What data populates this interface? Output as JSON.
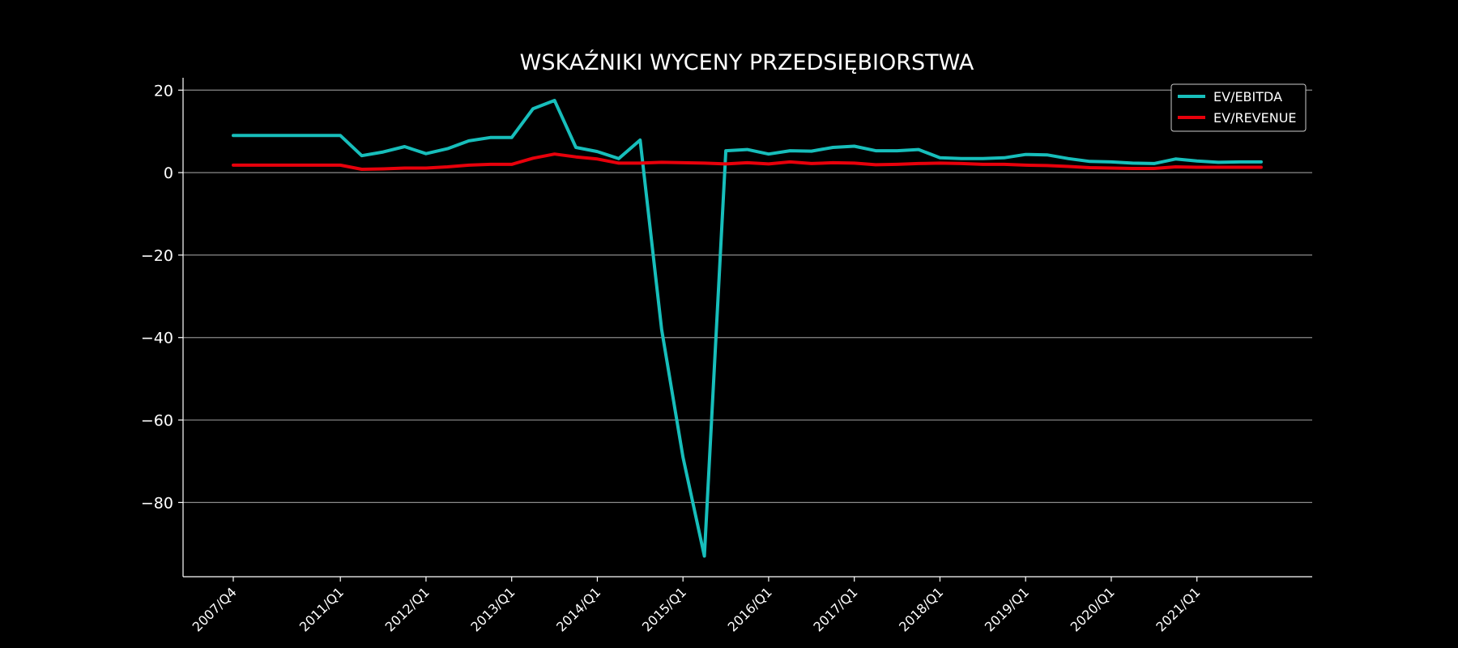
{
  "chart_data": {
    "type": "line",
    "title": "WSKAŹNIKI WYCENY PRZEDSIĘBIORSTWA",
    "xlabel": "",
    "ylabel": "",
    "ylim": [
      -98,
      23
    ],
    "yticks": [
      20,
      0,
      -20,
      -40,
      -60,
      -80
    ],
    "ytick_labels": [
      "20",
      "0",
      "−20",
      "−40",
      "−60",
      "−80"
    ],
    "grid": "horizontal",
    "legend_placement": "top-right",
    "background_color": "#000000",
    "categories": [
      "2007/Q4",
      "2008/Q1",
      "2009/Q1",
      "2010/Q1",
      "2010/Q3",
      "2011/Q1",
      "2011/Q2",
      "2011/Q3",
      "2011/Q4",
      "2012/Q1",
      "2012/Q2",
      "2012/Q3",
      "2012/Q4",
      "2013/Q1",
      "2013/Q2",
      "2013/Q3",
      "2013/Q4",
      "2014/Q1",
      "2014/Q2",
      "2014/Q3",
      "2014/Q4",
      "2015/Q1",
      "2015/Q2",
      "2015/Q3",
      "2015/Q4",
      "2016/Q1",
      "2016/Q2",
      "2016/Q3",
      "2016/Q4",
      "2017/Q1",
      "2017/Q2",
      "2017/Q3",
      "2017/Q4",
      "2018/Q1",
      "2018/Q2",
      "2018/Q3",
      "2018/Q4",
      "2019/Q1",
      "2019/Q2",
      "2019/Q3",
      "2019/Q4",
      "2020/Q1",
      "2020/Q2",
      "2020/Q3",
      "2020/Q4",
      "2021/Q1",
      "2021/Q2",
      "2021/Q3",
      "2021/Q4"
    ],
    "xtick_labels": [
      "2007/Q4",
      "2011/Q1",
      "2012/Q1",
      "2013/Q1",
      "2014/Q1",
      "2015/Q1",
      "2016/Q1",
      "2017/Q1",
      "2018/Q1",
      "2019/Q1",
      "2020/Q1",
      "2021/Q1"
    ],
    "series": [
      {
        "name": "EV/EBITDA",
        "color": "#17bebb",
        "values": [
          9.0,
          9.0,
          9.0,
          9.0,
          9.0,
          9.0,
          4.1,
          5.0,
          6.3,
          4.6,
          5.8,
          7.7,
          8.5,
          8.5,
          15.5,
          17.5,
          6.1,
          5.1,
          3.4,
          7.9,
          -38.0,
          -69.0,
          -93.0,
          5.3,
          5.6,
          4.5,
          5.3,
          5.2,
          6.1,
          6.4,
          5.3,
          5.3,
          5.6,
          3.6,
          3.4,
          3.4,
          3.6,
          4.4,
          4.3,
          3.4,
          2.7,
          2.6,
          2.3,
          2.2,
          3.3,
          2.8,
          2.5,
          2.6,
          2.6
        ]
      },
      {
        "name": "EV/REVENUE",
        "color": "#e8000b",
        "values": [
          1.8,
          1.8,
          1.8,
          1.8,
          1.8,
          1.8,
          0.8,
          0.9,
          1.1,
          1.1,
          1.4,
          1.8,
          2.0,
          2.0,
          3.5,
          4.5,
          3.8,
          3.3,
          2.3,
          2.3,
          2.5,
          2.4,
          2.3,
          2.1,
          2.4,
          2.1,
          2.6,
          2.2,
          2.4,
          2.3,
          1.9,
          2.0,
          2.2,
          2.3,
          2.2,
          2.0,
          2.0,
          1.8,
          1.7,
          1.5,
          1.2,
          1.1,
          1.0,
          1.0,
          1.4,
          1.3,
          1.3,
          1.3,
          1.3
        ]
      }
    ]
  }
}
